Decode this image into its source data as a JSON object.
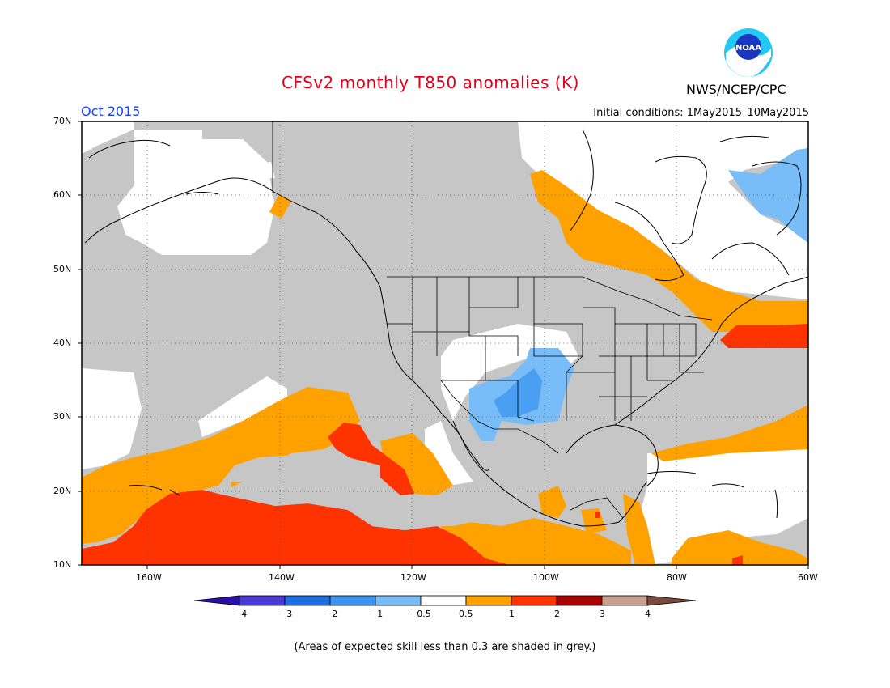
{
  "header": {
    "title": "CFSv2 monthly T850 anomalies (K)",
    "agency": "NWS/NCEP/CPC",
    "logo_text": "NOAA",
    "month": "Oct 2015",
    "initial_conditions": "Initial conditions: 1May2015–10May2015"
  },
  "axes": {
    "lat_labels": [
      "70N",
      "60N",
      "50N",
      "40N",
      "30N",
      "20N",
      "10N"
    ],
    "lon_labels": [
      "160W",
      "140W",
      "120W",
      "100W",
      "80W",
      "60W"
    ]
  },
  "legend": {
    "labels": [
      "−4",
      "−3",
      "−2",
      "−1",
      "−0.5",
      "0.5",
      "1",
      "2",
      "3",
      "4"
    ],
    "colors": [
      "#2a0fa8",
      "#4a3bd2",
      "#1f6ee0",
      "#3d94f0",
      "#78bdf8",
      "#ffffff",
      "#ffa200",
      "#ff3300",
      "#a80000",
      "#c8a090",
      "#7a4a3a"
    ]
  },
  "colors": {
    "grey_low_skill": "#c6c6c6",
    "anomaly_05_1": "#ffa200",
    "anomaly_1_2": "#ff3300",
    "anomaly_neg05_neg1": "#78bdf8",
    "title": "#e0001c",
    "month": "#1c40ff"
  },
  "footnote": "(Areas of expected skill less than 0.3 are shaded in grey.)"
}
